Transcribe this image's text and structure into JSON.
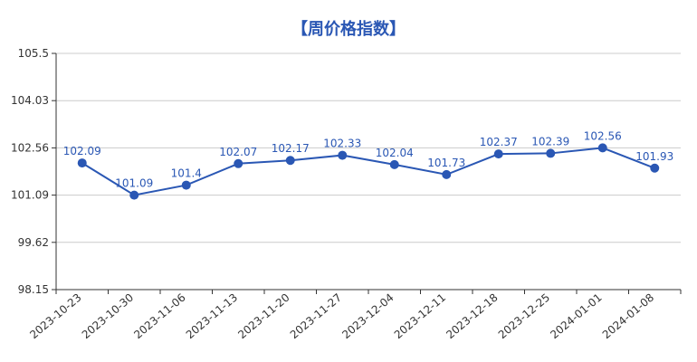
{
  "chart_data": {
    "type": "line",
    "title": "【周价格指数】",
    "xlabel": "",
    "ylabel": "",
    "categories": [
      "2023-10-23",
      "2023-10-30",
      "2023-11-06",
      "2023-11-13",
      "2023-11-20",
      "2023-11-27",
      "2023-12-04",
      "2023-12-11",
      "2023-12-18",
      "2023-12-25",
      "2024-01-01",
      "2024-01-08"
    ],
    "series": [
      {
        "values": [
          102.09,
          101.09,
          101.4,
          102.07,
          102.17,
          102.33,
          102.04,
          101.73,
          102.37,
          102.39,
          102.56,
          101.93
        ],
        "labels": [
          "102.09",
          "101.09",
          "101.4",
          "102.07",
          "102.17",
          "102.33",
          "102.04",
          "101.73",
          "102.37",
          "102.39",
          "102.56",
          "101.93"
        ],
        "color": "#2a57b4"
      }
    ],
    "ylim": [
      98.15,
      105.5
    ],
    "yticks": [
      "98.15",
      "99.62",
      "101.09",
      "102.56",
      "104.03",
      "105.5"
    ],
    "grid": true,
    "legend": "none"
  }
}
